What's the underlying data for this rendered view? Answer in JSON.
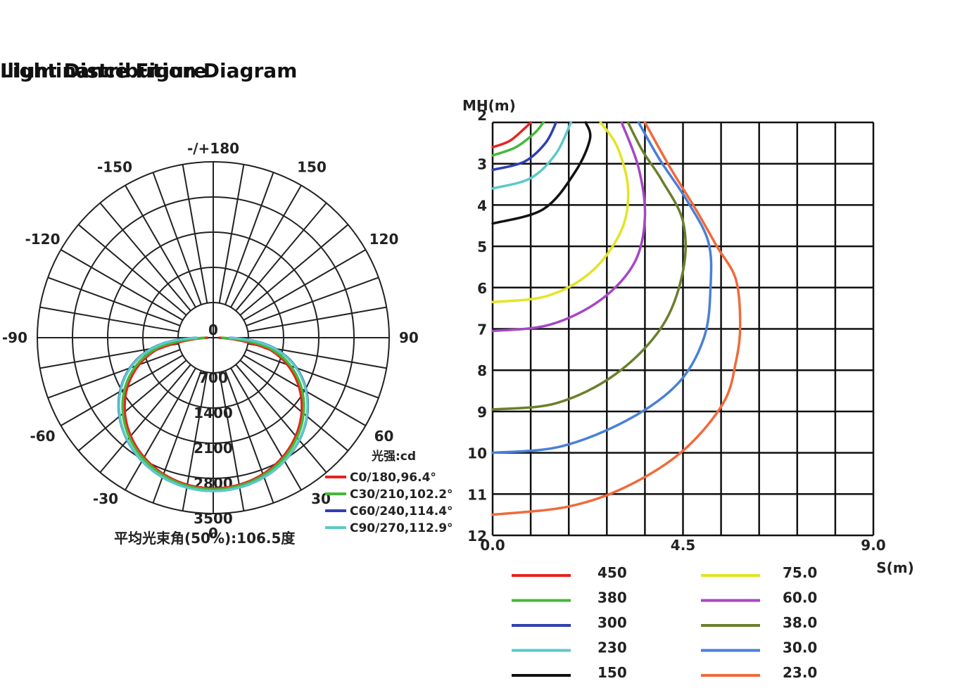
{
  "chart_data": [
    {
      "type": "polar",
      "title": "Light Distribution Diagram",
      "angle_labels": [
        {
          "angle": 180,
          "text": "-/+180"
        },
        {
          "angle": 150,
          "text": "150"
        },
        {
          "angle": -150,
          "text": "-150"
        },
        {
          "angle": 120,
          "text": "120"
        },
        {
          "angle": -120,
          "text": "-120"
        },
        {
          "angle": 90,
          "text": "90"
        },
        {
          "angle": -90,
          "text": "-90"
        },
        {
          "angle": 60,
          "text": "60"
        },
        {
          "angle": -60,
          "text": "-60"
        },
        {
          "angle": 30,
          "text": "30"
        },
        {
          "angle": -30,
          "text": "-30"
        },
        {
          "angle": 0,
          "text": "0"
        }
      ],
      "radial_ticks": [
        0,
        700,
        1400,
        2100,
        2800,
        3500
      ],
      "radial_labels": [
        "0",
        "700",
        "1400",
        "2100",
        "2800",
        "3500"
      ],
      "rmax": 3500,
      "unit_label": "光强:cd",
      "footnote": "平均光束角(50%):106.5度",
      "series": [
        {
          "name": "C0/180,96.4°",
          "color": "#e8231e",
          "beam": 96.4,
          "peak": 3000
        },
        {
          "name": "C30/210,102.2°",
          "color": "#46b83a",
          "beam": 102.2,
          "peak": 3020
        },
        {
          "name": "C60/240,114.4°",
          "color": "#2d3fb0",
          "beam": 114.4,
          "peak": 3050
        },
        {
          "name": "C90/270,112.9°",
          "color": "#5cc9c8",
          "beam": 112.9,
          "peak": 3050
        }
      ]
    },
    {
      "type": "line",
      "title": "Illuminance Figure",
      "ylabel": "MH(m)",
      "xlabel": "S(m)",
      "y_ticks": [
        "2",
        "3",
        "4",
        "5",
        "6",
        "7",
        "8",
        "9",
        "10",
        "11",
        "12"
      ],
      "x_ticks": [
        {
          "value": 0,
          "text": "0.0"
        },
        {
          "value": 4.5,
          "text": "4.5"
        },
        {
          "value": 9,
          "text": "9.0"
        }
      ],
      "xlim": [
        0,
        9
      ],
      "ylim": [
        2,
        12
      ],
      "series": [
        {
          "name": "450",
          "color": "#e8231e",
          "points": [
            [
              0,
              2.6
            ],
            [
              0.4,
              2.45
            ],
            [
              0.75,
              2.15
            ],
            [
              0.9,
              2.0
            ]
          ]
        },
        {
          "name": "380",
          "color": "#46b83a",
          "points": [
            [
              0,
              2.8
            ],
            [
              0.55,
              2.6
            ],
            [
              1.0,
              2.25
            ],
            [
              1.2,
              2.0
            ]
          ]
        },
        {
          "name": "300",
          "color": "#2d3fb0",
          "points": [
            [
              0,
              3.15
            ],
            [
              0.75,
              2.95
            ],
            [
              1.25,
              2.5
            ],
            [
              1.5,
              2.0
            ]
          ]
        },
        {
          "name": "230",
          "color": "#5cc9c8",
          "points": [
            [
              0,
              3.6
            ],
            [
              0.9,
              3.35
            ],
            [
              1.5,
              2.75
            ],
            [
              1.85,
              2.0
            ]
          ]
        },
        {
          "name": "150",
          "color": "#111111",
          "points": [
            [
              0,
              4.45
            ],
            [
              1.2,
              4.1
            ],
            [
              1.95,
              3.2
            ],
            [
              2.3,
              2.4
            ],
            [
              2.2,
              2.0
            ]
          ]
        },
        {
          "name": "75.0",
          "color": "#e3e424",
          "points": [
            [
              0,
              6.35
            ],
            [
              1.3,
              6.2
            ],
            [
              2.35,
              5.6
            ],
            [
              3.05,
              4.6
            ],
            [
              3.2,
              3.6
            ],
            [
              2.95,
              2.6
            ],
            [
              2.55,
              2.0
            ]
          ]
        },
        {
          "name": "60.0",
          "color": "#a547c4",
          "points": [
            [
              0,
              7.05
            ],
            [
              1.35,
              6.9
            ],
            [
              2.55,
              6.3
            ],
            [
              3.35,
              5.4
            ],
            [
              3.6,
              4.3
            ],
            [
              3.45,
              3.1
            ],
            [
              3.05,
              2.0
            ]
          ]
        },
        {
          "name": "38.0",
          "color": "#6b7f2b",
          "points": [
            [
              0,
              8.95
            ],
            [
              1.5,
              8.8
            ],
            [
              2.9,
              8.1
            ],
            [
              4.0,
              6.95
            ],
            [
              4.5,
              5.6
            ],
            [
              4.5,
              4.4
            ],
            [
              4.0,
              3.4
            ],
            [
              3.55,
              2.7
            ],
            [
              3.2,
              2.0
            ]
          ]
        },
        {
          "name": "30.0",
          "color": "#4a80d6",
          "points": [
            [
              0,
              10.0
            ],
            [
              1.6,
              9.85
            ],
            [
              3.2,
              9.2
            ],
            [
              4.4,
              8.3
            ],
            [
              5.0,
              7.2
            ],
            [
              5.15,
              6.0
            ],
            [
              5.1,
              4.9
            ],
            [
              4.6,
              3.9
            ],
            [
              3.95,
              2.9
            ],
            [
              3.45,
              2.0
            ]
          ]
        },
        {
          "name": "23.0",
          "color": "#f06a3a",
          "points": [
            [
              0,
              11.5
            ],
            [
              1.8,
              11.3
            ],
            [
              3.2,
              10.8
            ],
            [
              4.5,
              9.95
            ],
            [
              5.45,
              8.8
            ],
            [
              5.75,
              7.8
            ],
            [
              5.85,
              6.9
            ],
            [
              5.75,
              5.8
            ],
            [
              5.3,
              5.0
            ],
            [
              4.8,
              4.1
            ],
            [
              4.2,
              3.1
            ],
            [
              3.6,
              2.0
            ]
          ]
        }
      ]
    }
  ]
}
